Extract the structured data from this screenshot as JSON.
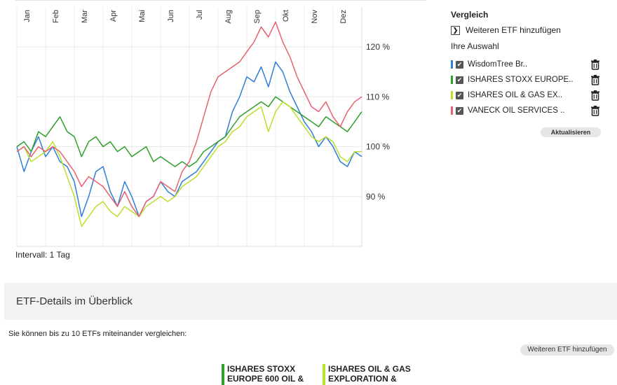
{
  "chart_data": {
    "type": "line",
    "x_ticks": [
      "Jan",
      "Feb",
      "Mar",
      "Apr",
      "Mai",
      "Jun",
      "Jul",
      "Aug",
      "Sep",
      "Okt",
      "Nov",
      "Dez"
    ],
    "y_ticks": [
      "90 %",
      "100 %",
      "110 %",
      "120 %"
    ],
    "y_tick_values": [
      90,
      100,
      110,
      120
    ],
    "ylim": [
      80,
      128
    ],
    "xlim": [
      0,
      12
    ],
    "grid": true,
    "series": [
      {
        "name": "WisdomTree Br..",
        "color": "#2f7ed8",
        "x": [
          0,
          0.25,
          0.5,
          0.75,
          1,
          1.25,
          1.5,
          1.75,
          2,
          2.25,
          2.5,
          2.75,
          3,
          3.25,
          3.5,
          3.75,
          4,
          4.25,
          4.5,
          4.75,
          5,
          5.25,
          5.5,
          5.75,
          6,
          6.25,
          6.5,
          6.75,
          7,
          7.25,
          7.5,
          7.75,
          8,
          8.25,
          8.5,
          8.75,
          9,
          9.25,
          9.5,
          9.75,
          10,
          10.25,
          10.5,
          10.75,
          11,
          11.25,
          11.5,
          11.75,
          12
        ],
        "values": [
          100,
          95,
          99,
          102,
          98,
          100,
          97,
          96,
          93,
          86,
          90,
          95,
          96,
          91,
          88,
          93,
          90,
          86,
          89,
          90,
          93,
          91,
          90,
          93,
          94,
          95,
          97,
          99,
          101,
          102,
          107,
          110,
          114,
          113,
          116,
          112,
          117,
          115,
          111,
          108,
          105,
          103,
          100,
          102,
          100,
          97,
          96,
          99,
          98
        ]
      },
      {
        "name": "ISHARES STOXX EUROPE..",
        "color": "#2ca02c",
        "x": [
          0,
          0.25,
          0.5,
          0.75,
          1,
          1.25,
          1.5,
          1.75,
          2,
          2.25,
          2.5,
          2.75,
          3,
          3.25,
          3.5,
          3.75,
          4,
          4.25,
          4.5,
          4.75,
          5,
          5.25,
          5.5,
          5.75,
          6,
          6.25,
          6.5,
          6.75,
          7,
          7.25,
          7.5,
          7.75,
          8,
          8.25,
          8.5,
          8.75,
          9,
          9.25,
          9.5,
          9.75,
          10,
          10.25,
          10.5,
          10.75,
          11,
          11.25,
          11.5,
          11.75,
          12
        ],
        "values": [
          100,
          101,
          99,
          103,
          102,
          104,
          106,
          103,
          102,
          98,
          101,
          102,
          100,
          101,
          99,
          100,
          98,
          99,
          100,
          97,
          98,
          97,
          96,
          97,
          96,
          97,
          99,
          100,
          101,
          102,
          104,
          106,
          107,
          108,
          109,
          108,
          110,
          109,
          108,
          107,
          106,
          105,
          104,
          106,
          105,
          104,
          103,
          105,
          107
        ]
      },
      {
        "name": "ISHARES OIL & GAS EX..",
        "color": "#b9e02a",
        "x": [
          0,
          0.25,
          0.5,
          0.75,
          1,
          1.25,
          1.5,
          1.75,
          2,
          2.25,
          2.5,
          2.75,
          3,
          3.25,
          3.5,
          3.75,
          4,
          4.25,
          4.5,
          4.75,
          5,
          5.25,
          5.5,
          5.75,
          6,
          6.25,
          6.5,
          6.75,
          7,
          7.25,
          7.5,
          7.75,
          8,
          8.25,
          8.5,
          8.75,
          9,
          9.25,
          9.5,
          9.75,
          10,
          10.25,
          10.5,
          10.75,
          11,
          11.25,
          11.5,
          11.75,
          12
        ],
        "values": [
          99,
          100,
          97,
          98,
          99,
          101,
          98,
          94,
          90,
          84,
          86,
          88,
          89,
          87,
          86,
          88,
          87,
          86,
          88,
          89,
          90,
          89,
          90,
          92,
          93,
          94,
          96,
          98,
          100,
          101,
          103,
          104,
          106,
          107,
          108,
          103,
          107,
          109,
          108,
          106,
          104,
          102,
          101,
          102,
          101,
          98,
          97,
          99,
          99
        ]
      },
      {
        "name": "VANECK OIL SERVICES ..",
        "color": "#e8626e",
        "x": [
          0,
          0.25,
          0.5,
          0.75,
          1,
          1.25,
          1.5,
          1.75,
          2,
          2.25,
          2.5,
          2.75,
          3,
          3.25,
          3.5,
          3.75,
          4,
          4.25,
          4.5,
          4.75,
          5,
          5.25,
          5.5,
          5.75,
          6,
          6.25,
          6.5,
          6.75,
          7,
          7.25,
          7.5,
          7.75,
          8,
          8.25,
          8.5,
          8.75,
          9,
          9.25,
          9.5,
          9.75,
          10,
          10.25,
          10.5,
          10.75,
          11,
          11.25,
          11.5,
          11.75,
          12
        ],
        "values": [
          99,
          100,
          98,
          100,
          99,
          100,
          99,
          97,
          95,
          92,
          94,
          93,
          92,
          90,
          88,
          91,
          88,
          86,
          89,
          90,
          93,
          92,
          91,
          95,
          97,
          101,
          106,
          111,
          114,
          115,
          116,
          117,
          119,
          121,
          124,
          122,
          125,
          121,
          118,
          114,
          111,
          108,
          107,
          109,
          106,
          104,
          107,
          109,
          110
        ]
      }
    ]
  },
  "interval_label": "Intervall: 1 Tag",
  "compare": {
    "title": "Vergleich",
    "add_label": "Weiteren ETF hinzufügen",
    "selection_title": "Ihre Auswahl",
    "items": [
      {
        "label": "WisdomTree Br..",
        "color": "#2f7ed8"
      },
      {
        "label": "ISHARES STOXX EUROPE..",
        "color": "#2ca02c"
      },
      {
        "label": "ISHARES OIL & GAS EX..",
        "color": "#b9e02a"
      },
      {
        "label": "VANECK OIL SERVICES ..",
        "color": "#e8626e"
      }
    ],
    "update_label": "Aktualisieren"
  },
  "details": {
    "title": "ETF-Details im Überblick",
    "info": "Sie können bis zu 10 ETFs miteinander vergleichen:",
    "add_label": "Weiteren ETF hinzufügen",
    "columns": [
      {
        "line1": "ISHARES STOXX",
        "line2": "EUROPE 600 OIL &",
        "color": "#2ca02c"
      },
      {
        "line1": "ISHARES OIL & GAS",
        "line2": "EXPLORATION &",
        "color": "#b9e02a"
      }
    ]
  },
  "icons": {
    "check": "check-icon",
    "trash": "trash-icon",
    "chevron": "chevron-right-icon"
  }
}
